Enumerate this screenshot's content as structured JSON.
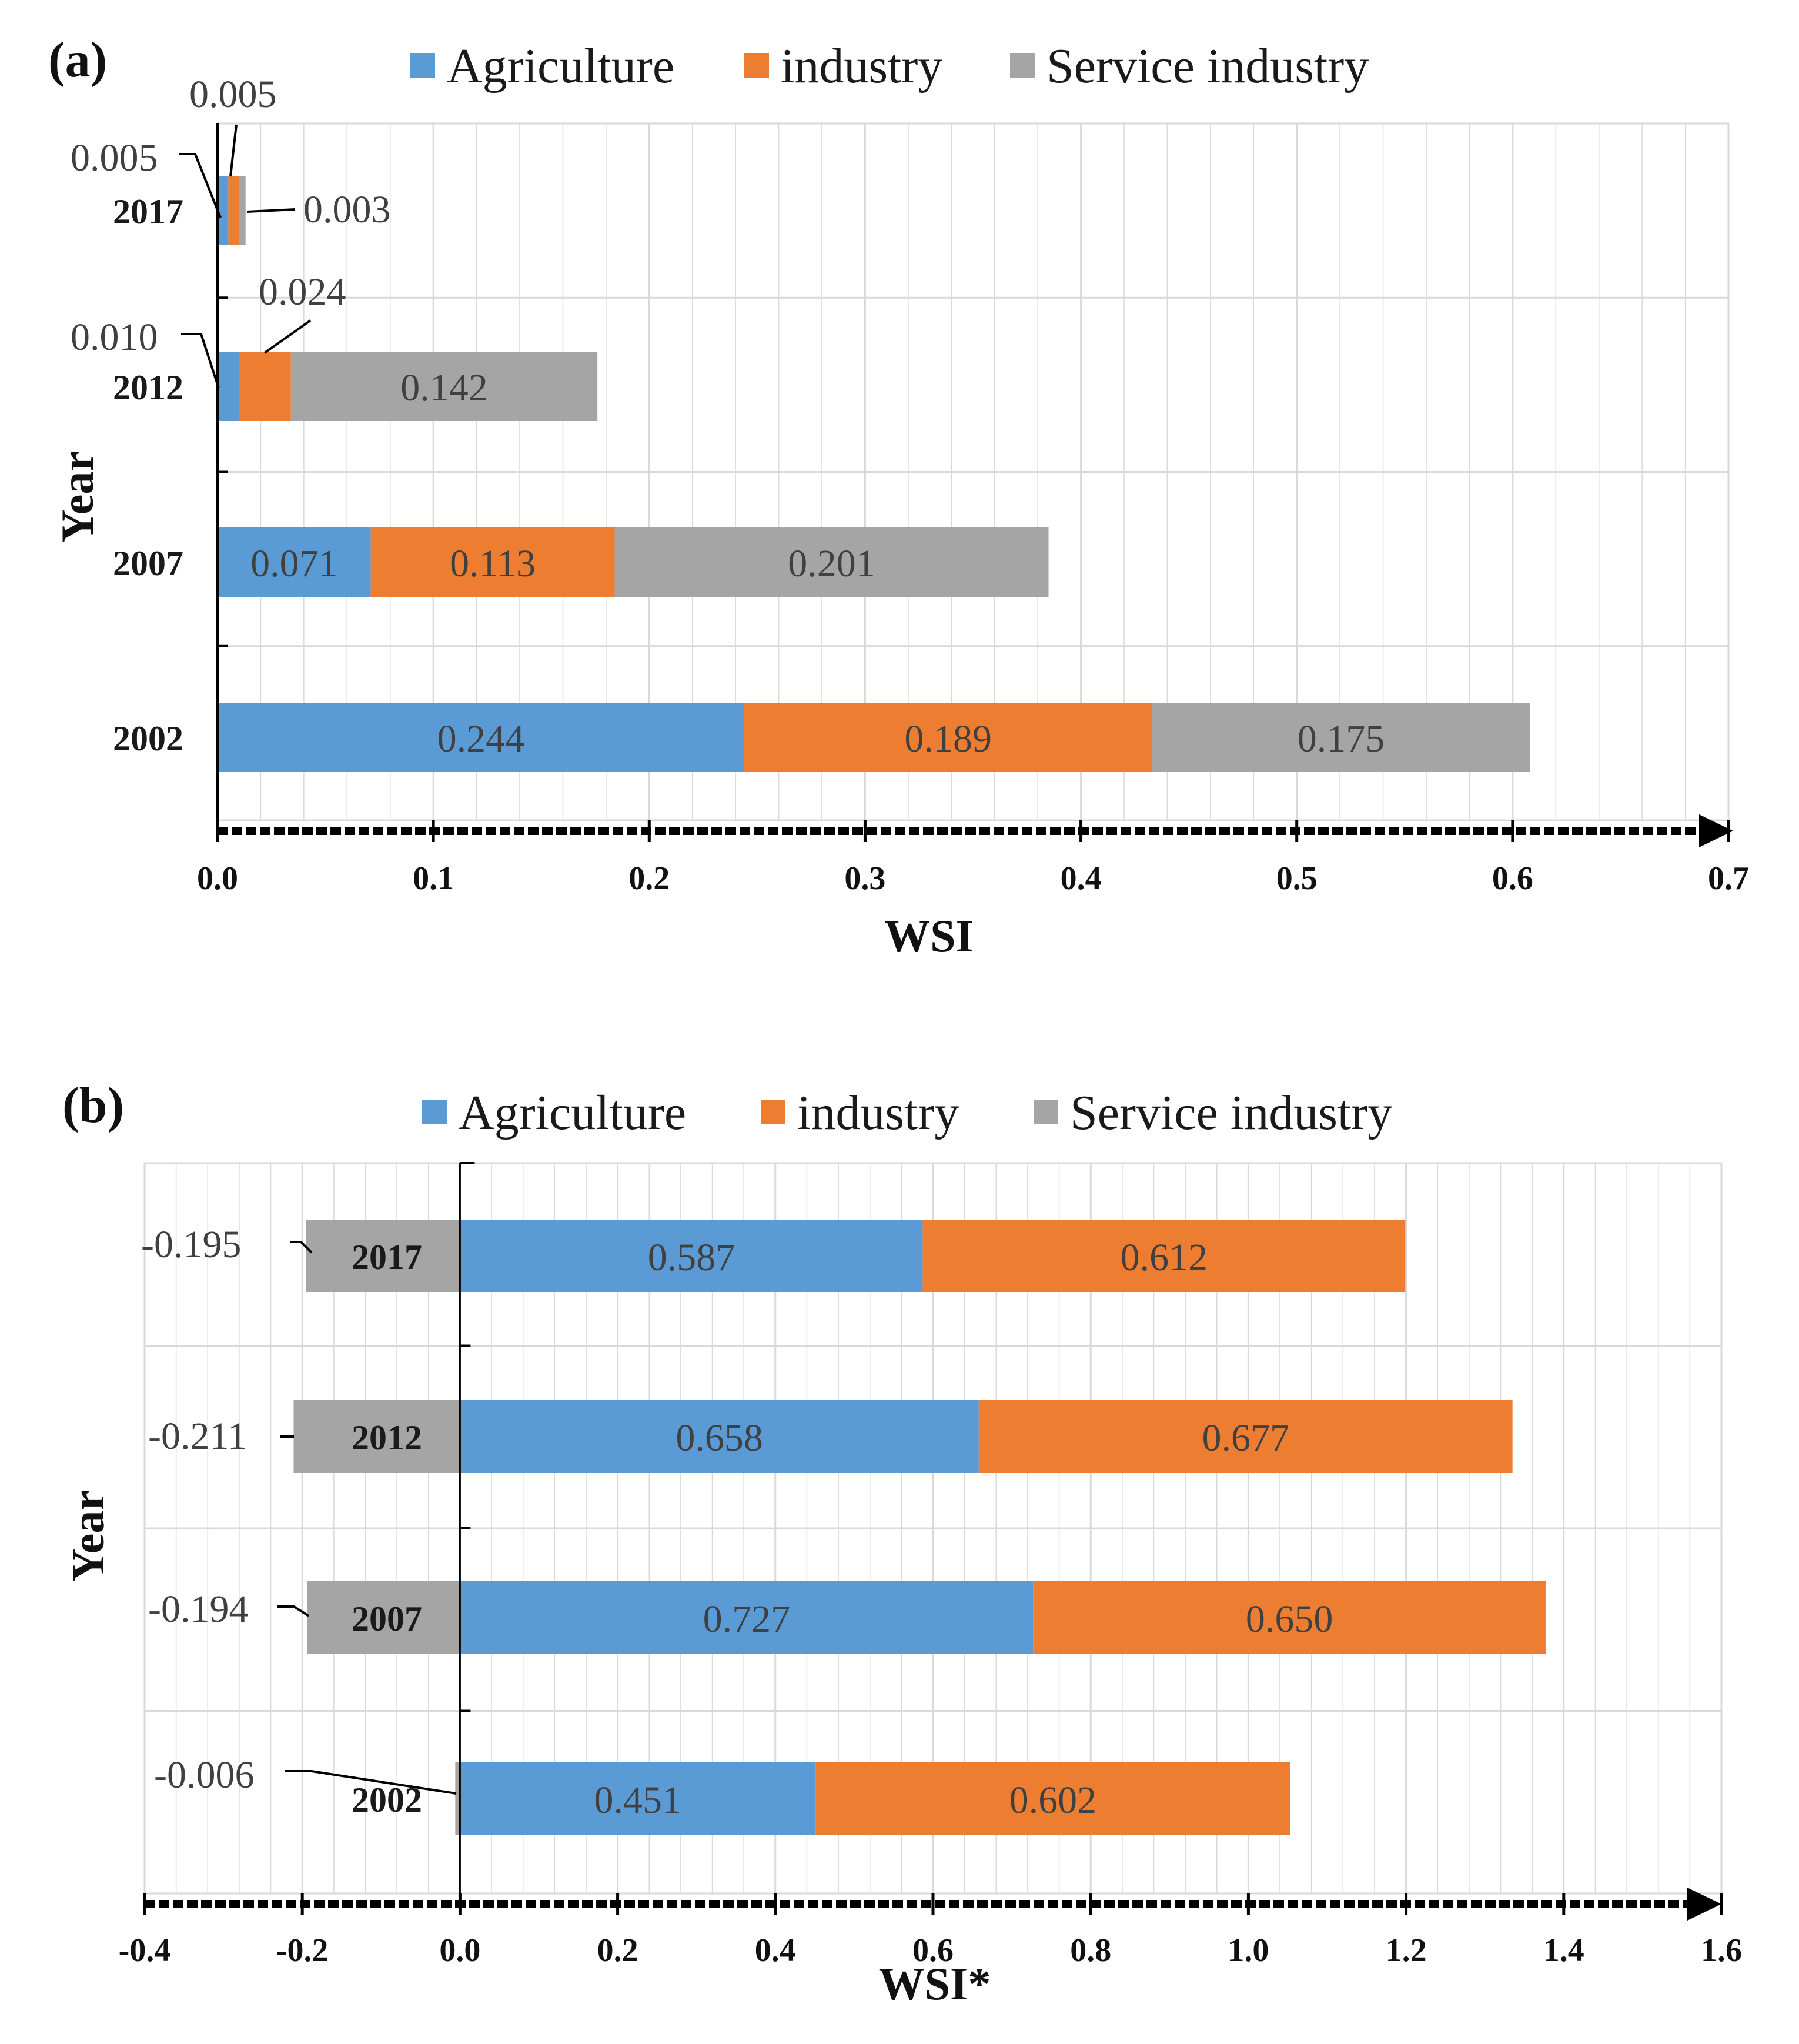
{
  "colors": {
    "agriculture": "#5b9bd5",
    "industry": "#ed7d31",
    "service": "#a5a5a5",
    "grid": "#d9d9d9",
    "axis": "#000000"
  },
  "chart_data": [
    {
      "panel": "(a)",
      "type": "bar",
      "orientation": "horizontal",
      "stacked": true,
      "xlabel": "WSI",
      "ylabel": "Year",
      "xlim": [
        0,
        0.7
      ],
      "xticks": [
        "0.0",
        "0.1",
        "0.2",
        "0.3",
        "0.4",
        "0.5",
        "0.6",
        "0.7"
      ],
      "legend": [
        "Agriculture",
        "industry",
        "Service industry"
      ],
      "categories": [
        "2017",
        "2012",
        "2007",
        "2002"
      ],
      "series": [
        {
          "name": "Agriculture",
          "values": [
            0.005,
            0.01,
            0.071,
            0.244
          ],
          "labels": [
            "0.005",
            "0.010",
            "0.071",
            "0.244"
          ]
        },
        {
          "name": "industry",
          "values": [
            0.005,
            0.024,
            0.113,
            0.189
          ],
          "labels": [
            "0.005",
            "0.024",
            "0.113",
            "0.189"
          ]
        },
        {
          "name": "Service industry",
          "values": [
            0.003,
            0.142,
            0.201,
            0.175
          ],
          "labels": [
            "0.003",
            "0.142",
            "0.201",
            "0.175"
          ]
        }
      ]
    },
    {
      "panel": "(b)",
      "type": "bar",
      "orientation": "horizontal",
      "stacked": true,
      "xlabel": "WSI*",
      "ylabel": "Year",
      "xlim": [
        -0.4,
        1.6
      ],
      "xticks": [
        "-0.4",
        "-0.2",
        "0.0",
        "0.2",
        "0.4",
        "0.6",
        "0.8",
        "1.0",
        "1.2",
        "1.4",
        "1.6"
      ],
      "legend": [
        "Agriculture",
        "industry",
        "Service industry"
      ],
      "categories": [
        "2017",
        "2012",
        "2007",
        "2002"
      ],
      "series": [
        {
          "name": "Agriculture",
          "values": [
            0.587,
            0.658,
            0.727,
            0.451
          ],
          "labels": [
            "0.587",
            "0.658",
            "0.727",
            "0.451"
          ]
        },
        {
          "name": "industry",
          "values": [
            0.612,
            0.677,
            0.65,
            0.602
          ],
          "labels": [
            "0.612",
            "0.677",
            "0.650",
            "0.602"
          ]
        },
        {
          "name": "Service industry",
          "values": [
            -0.195,
            -0.211,
            -0.194,
            -0.006
          ],
          "labels": [
            "-0.195",
            "-0.211",
            "-0.194",
            "-0.006"
          ]
        }
      ]
    }
  ]
}
